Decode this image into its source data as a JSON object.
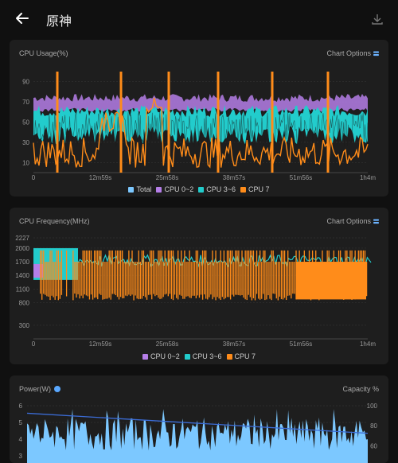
{
  "header": {
    "title": "原神",
    "back_icon": "arrow-left-icon",
    "download_icon": "download-icon"
  },
  "cards": [
    {
      "title": "CPU Usage(%)",
      "options_label": "Chart Options",
      "y_ticks": [
        "90",
        "70",
        "50",
        "30",
        "10"
      ],
      "x_ticks": [
        "0",
        "12m59s",
        "25m58s",
        "38m57s",
        "51m56s",
        "1h4m"
      ],
      "legend": [
        {
          "label": "Total",
          "color": "#7cc8ff"
        },
        {
          "label": "CPU 0~2",
          "color": "#b57ee8"
        },
        {
          "label": "CPU 3~6",
          "color": "#22cccc"
        },
        {
          "label": "CPU 7",
          "color": "#ff8c1a"
        }
      ]
    },
    {
      "title": "CPU Frequency(MHz)",
      "options_label": "Chart Options",
      "y_ticks": [
        "2227",
        "2000",
        "1700",
        "1400",
        "1100",
        "800",
        "300"
      ],
      "x_ticks": [
        "0",
        "12m59s",
        "25m58s",
        "38m57s",
        "51m56s",
        "1h4m"
      ],
      "legend": [
        {
          "label": "CPU 0~2",
          "color": "#b57ee8"
        },
        {
          "label": "CPU 3~6",
          "color": "#22cccc"
        },
        {
          "label": "CPU 7",
          "color": "#ff8c1a"
        }
      ]
    },
    {
      "title": "Power(W)",
      "capacity_label": "Capacity %",
      "y_ticks": [
        "6",
        "5",
        "4",
        "3"
      ],
      "y2_ticks": [
        "100",
        "80",
        "60"
      ]
    }
  ],
  "chart_data": [
    {
      "type": "line",
      "title": "CPU Usage(%)",
      "x_range": [
        "0",
        "1h4m"
      ],
      "ylim": [
        0,
        100
      ],
      "series": [
        {
          "name": "Total",
          "approx_level": 40
        },
        {
          "name": "CPU 0~2",
          "approx_level": 68
        },
        {
          "name": "CPU 3~6",
          "approx_level": 50
        },
        {
          "name": "CPU 7",
          "approx_level": 20,
          "spikes_to": 100
        }
      ]
    },
    {
      "type": "line",
      "title": "CPU Frequency(MHz)",
      "x_range": [
        "0",
        "1h4m"
      ],
      "ylim": [
        0,
        2227
      ],
      "series": [
        {
          "name": "CPU 0~2",
          "approx_level": 1700
        },
        {
          "name": "CPU 3~6",
          "approx_level": 1650
        },
        {
          "name": "CPU 7",
          "approx_level": 1500,
          "range": [
            850,
            1950
          ]
        }
      ]
    },
    {
      "type": "area",
      "title": "Power(W)",
      "ylim": [
        3,
        6
      ],
      "y2lim": [
        60,
        100
      ],
      "series": [
        {
          "name": "Power",
          "approx_level": 4.5
        },
        {
          "name": "Capacity",
          "start": 100,
          "end": 80
        }
      ]
    }
  ]
}
